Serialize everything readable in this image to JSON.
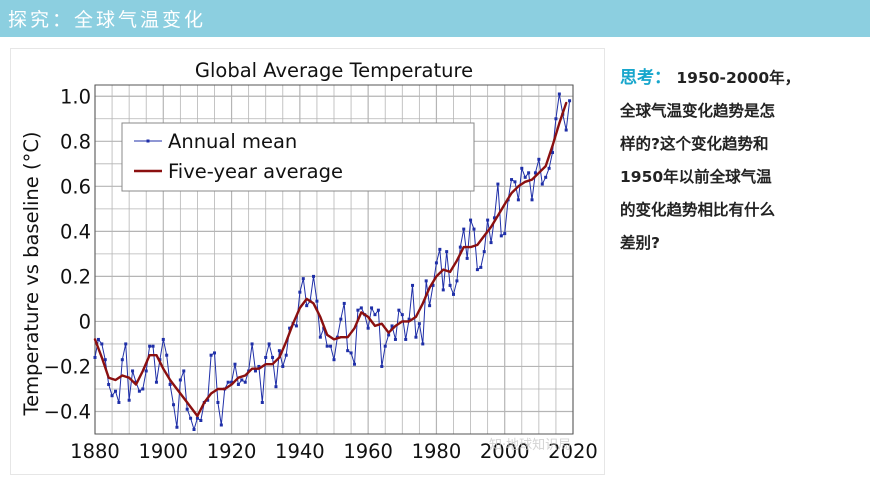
{
  "header": {
    "title": "探究：全球气温变化",
    "background": "#8ccfe0"
  },
  "question": {
    "label": "思考：",
    "label_color": "#17a6cc",
    "lines": [
      " 1950-2000年，",
      "全球气温变化趋势是怎",
      "样的?这个变化趋势和",
      "1950年以前全球气温",
      "的变化趋势相比有什么",
      "差别?"
    ]
  },
  "chart_data": {
    "type": "line",
    "title": "Global Average Temperature",
    "xlabel": "",
    "ylabel": "Temperature vs baseline (°C)",
    "xlim": [
      1880,
      2020
    ],
    "ylim": [
      -0.5,
      1.05
    ],
    "x_ticks": [
      "1880",
      "1900",
      "1920",
      "1940",
      "1960",
      "1980",
      "2000",
      "2020"
    ],
    "y_ticks": [
      "1.0",
      "0.8",
      "0.6",
      "0.4",
      "0.2",
      "0",
      "−0.2",
      "−0.4"
    ],
    "grid": true,
    "legend_position": "top-left",
    "watermark": "知·地球知识局",
    "series": [
      {
        "name": "Annual mean",
        "color": "#1f2fa8",
        "style": "line-with-markers",
        "x": [
          1880,
          1881,
          1882,
          1883,
          1884,
          1885,
          1886,
          1887,
          1888,
          1889,
          1890,
          1891,
          1892,
          1893,
          1894,
          1895,
          1896,
          1897,
          1898,
          1899,
          1900,
          1901,
          1902,
          1903,
          1904,
          1905,
          1906,
          1907,
          1908,
          1909,
          1910,
          1911,
          1912,
          1913,
          1914,
          1915,
          1916,
          1917,
          1918,
          1919,
          1920,
          1921,
          1922,
          1923,
          1924,
          1925,
          1926,
          1927,
          1928,
          1929,
          1930,
          1931,
          1932,
          1933,
          1934,
          1935,
          1936,
          1937,
          1938,
          1939,
          1940,
          1941,
          1942,
          1943,
          1944,
          1945,
          1946,
          1947,
          1948,
          1949,
          1950,
          1951,
          1952,
          1953,
          1954,
          1955,
          1956,
          1957,
          1958,
          1959,
          1960,
          1961,
          1962,
          1963,
          1964,
          1965,
          1966,
          1967,
          1968,
          1969,
          1970,
          1971,
          1972,
          1973,
          1974,
          1975,
          1976,
          1977,
          1978,
          1979,
          1980,
          1981,
          1982,
          1983,
          1984,
          1985,
          1986,
          1987,
          1988,
          1989,
          1990,
          1991,
          1992,
          1993,
          1994,
          1995,
          1996,
          1997,
          1998,
          1999,
          2000,
          2001,
          2002,
          2003,
          2004,
          2005,
          2006,
          2007,
          2008,
          2009,
          2010,
          2011,
          2012,
          2013,
          2014,
          2015,
          2016,
          2017,
          2018,
          2019
        ],
        "values": [
          -0.16,
          -0.08,
          -0.1,
          -0.17,
          -0.28,
          -0.33,
          -0.31,
          -0.36,
          -0.17,
          -0.1,
          -0.35,
          -0.22,
          -0.27,
          -0.31,
          -0.3,
          -0.22,
          -0.11,
          -0.11,
          -0.27,
          -0.17,
          -0.08,
          -0.15,
          -0.28,
          -0.37,
          -0.47,
          -0.26,
          -0.22,
          -0.39,
          -0.43,
          -0.48,
          -0.43,
          -0.44,
          -0.36,
          -0.35,
          -0.15,
          -0.14,
          -0.36,
          -0.46,
          -0.3,
          -0.27,
          -0.27,
          -0.19,
          -0.28,
          -0.26,
          -0.27,
          -0.22,
          -0.1,
          -0.22,
          -0.2,
          -0.36,
          -0.16,
          -0.1,
          -0.16,
          -0.29,
          -0.13,
          -0.2,
          -0.15,
          -0.03,
          -0.01,
          -0.02,
          0.13,
          0.19,
          0.07,
          0.09,
          0.2,
          0.09,
          -0.07,
          -0.03,
          -0.11,
          -0.11,
          -0.17,
          -0.07,
          0.01,
          0.08,
          -0.13,
          -0.14,
          -0.19,
          0.05,
          0.06,
          0.03,
          -0.03,
          0.06,
          0.03,
          0.05,
          -0.2,
          -0.11,
          -0.06,
          -0.02,
          -0.08,
          0.05,
          0.03,
          -0.08,
          0.01,
          0.16,
          -0.07,
          -0.01,
          -0.1,
          0.18,
          0.07,
          0.16,
          0.26,
          0.32,
          0.14,
          0.31,
          0.16,
          0.12,
          0.18,
          0.33,
          0.41,
          0.28,
          0.45,
          0.41,
          0.23,
          0.24,
          0.31,
          0.45,
          0.35,
          0.46,
          0.61,
          0.38,
          0.39,
          0.54,
          0.63,
          0.62,
          0.54,
          0.68,
          0.64,
          0.66,
          0.54,
          0.66,
          0.72,
          0.61,
          0.64,
          0.68,
          0.75,
          0.9,
          1.01,
          0.92,
          0.85,
          0.98
        ]
      },
      {
        "name": "Five-year average",
        "color": "#8b1010",
        "style": "line",
        "x": [
          1880,
          1882,
          1884,
          1886,
          1888,
          1890,
          1892,
          1894,
          1896,
          1898,
          1900,
          1902,
          1904,
          1906,
          1908,
          1910,
          1912,
          1914,
          1916,
          1918,
          1920,
          1922,
          1924,
          1926,
          1928,
          1930,
          1932,
          1934,
          1936,
          1938,
          1940,
          1942,
          1944,
          1946,
          1948,
          1950,
          1952,
          1954,
          1956,
          1958,
          1960,
          1962,
          1964,
          1966,
          1968,
          1970,
          1972,
          1974,
          1976,
          1978,
          1980,
          1982,
          1984,
          1986,
          1988,
          1990,
          1992,
          1994,
          1996,
          1998,
          2000,
          2002,
          2004,
          2006,
          2008,
          2010,
          2012,
          2014,
          2016,
          2018
        ],
        "values": [
          -0.08,
          -0.16,
          -0.25,
          -0.26,
          -0.24,
          -0.25,
          -0.28,
          -0.22,
          -0.15,
          -0.15,
          -0.21,
          -0.26,
          -0.3,
          -0.34,
          -0.38,
          -0.42,
          -0.36,
          -0.32,
          -0.3,
          -0.3,
          -0.28,
          -0.25,
          -0.24,
          -0.21,
          -0.21,
          -0.19,
          -0.19,
          -0.16,
          -0.09,
          -0.01,
          0.06,
          0.1,
          0.08,
          0.02,
          -0.06,
          -0.08,
          -0.07,
          -0.07,
          -0.03,
          0.04,
          0.02,
          -0.02,
          -0.01,
          -0.05,
          -0.02,
          0.0,
          0.0,
          0.02,
          0.08,
          0.15,
          0.2,
          0.23,
          0.22,
          0.27,
          0.33,
          0.33,
          0.34,
          0.38,
          0.42,
          0.47,
          0.52,
          0.57,
          0.6,
          0.62,
          0.63,
          0.66,
          0.69,
          0.78,
          0.88,
          0.97
        ]
      }
    ]
  }
}
